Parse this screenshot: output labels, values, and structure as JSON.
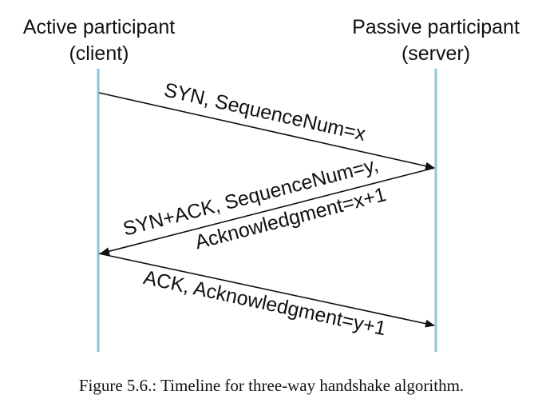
{
  "participants": {
    "left": {
      "name": "Active participant",
      "role": "(client)"
    },
    "right": {
      "name": "Passive participant",
      "role": "(server)"
    }
  },
  "messages": [
    {
      "lines": [
        "SYN, SequenceNum=x"
      ],
      "direction": "left-to-right"
    },
    {
      "lines": [
        "SYN+ACK, SequenceNum=y,",
        "Acknowledgment=x+1"
      ],
      "direction": "right-to-left"
    },
    {
      "lines": [
        "ACK, Acknowledgment=y+1"
      ],
      "direction": "left-to-right"
    }
  ],
  "caption": "Figure 5.6.: Timeline for three-way handshake algorithm.",
  "colors": {
    "lifeline": "#8fc3dc",
    "arrow": "#111111"
  }
}
